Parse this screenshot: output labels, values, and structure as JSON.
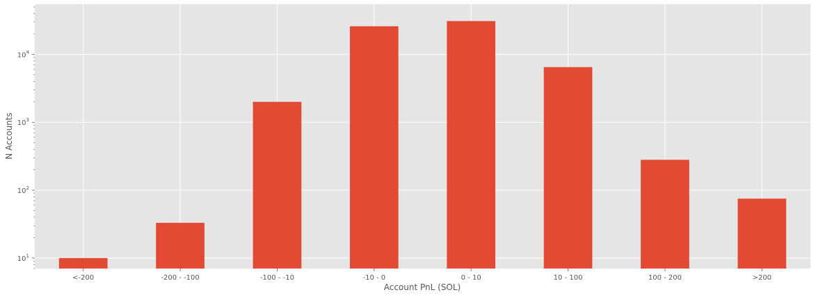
{
  "chart_data": {
    "type": "bar",
    "categories": [
      "<-200",
      "-200 - -100",
      "-100 - -10",
      "-10 - 0",
      "0 - 10",
      "10 - 100",
      "100 - 200",
      ">200"
    ],
    "values": [
      10,
      33,
      2000,
      26000,
      31000,
      6500,
      280,
      75
    ],
    "xlabel": "Account PnL (SOL)",
    "ylabel": "N Accounts",
    "yscale": "log",
    "ylim": [
      7,
      55000
    ],
    "yticks": [
      {
        "value": 10,
        "base": "10",
        "exp": "1"
      },
      {
        "value": 100,
        "base": "10",
        "exp": "2"
      },
      {
        "value": 1000,
        "base": "10",
        "exp": "3"
      },
      {
        "value": 10000,
        "base": "10",
        "exp": "4"
      }
    ],
    "grid": true,
    "colors": {
      "bar": "#E24A33",
      "plot_background": "#E5E5E5",
      "grid": "#FFFFFF",
      "text": "#555555"
    }
  }
}
